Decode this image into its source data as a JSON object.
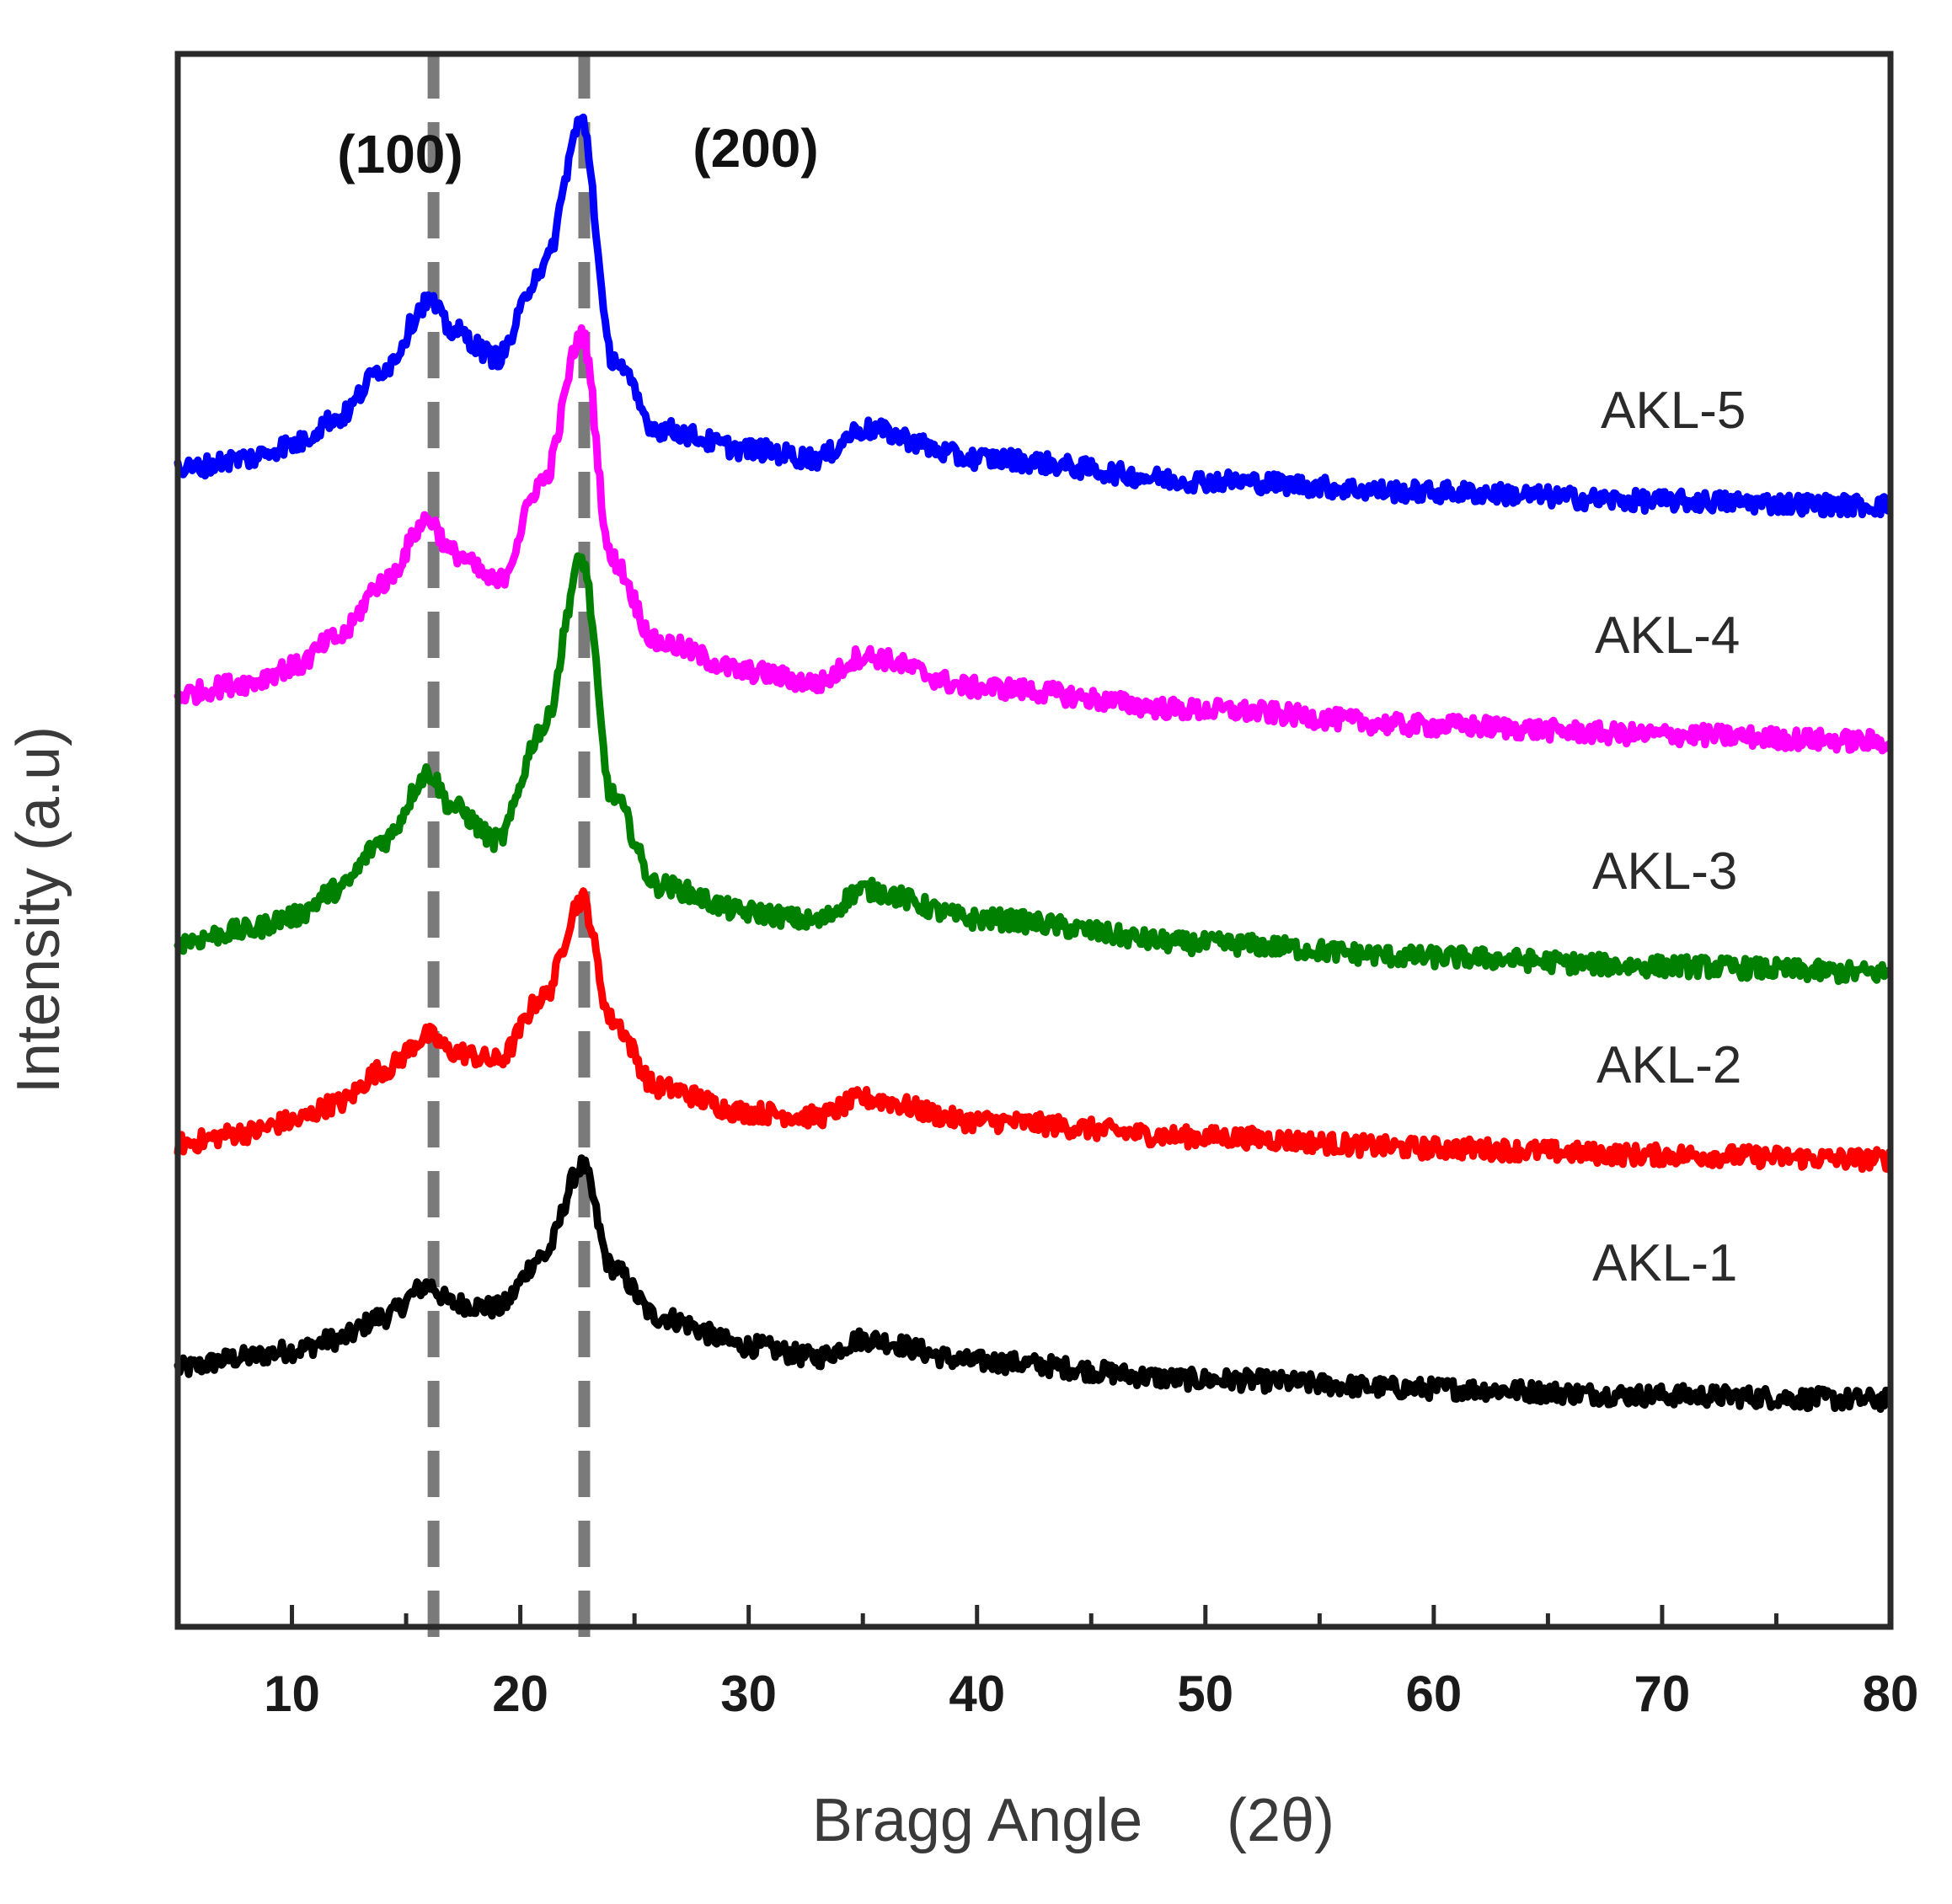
{
  "chart_data": {
    "type": "line",
    "title": "",
    "xlabel": "Bragg Angle",
    "xlabel_unit": "(2θ)",
    "ylabel": "Intensity (a.u)",
    "xlim": [
      5,
      80
    ],
    "ylim": [
      0,
      70
    ],
    "xticks": [
      10,
      20,
      30,
      40,
      50,
      60,
      70,
      80
    ],
    "xtick_labels": [
      "10",
      "20",
      "30",
      "40",
      "50",
      "60",
      "70",
      "80"
    ],
    "grid": false,
    "legend": "inline-right",
    "reference_lines": [
      {
        "x": 16.2,
        "label": "(100)"
      },
      {
        "x": 22.8,
        "label": "(200)"
      }
    ],
    "series": [
      {
        "name": "AKL-1",
        "color": "#000000",
        "x": [
          5,
          8,
          10,
          12,
          14,
          16,
          17,
          19,
          21,
          22.7,
          24,
          26,
          30,
          33,
          35,
          40,
          50,
          60,
          70,
          80
        ],
        "y": [
          11.5,
          12,
          12.3,
          12.8,
          13.8,
          15.2,
          14.4,
          14.2,
          16.5,
          20.5,
          16,
          13.8,
          12.5,
          12,
          12.8,
          11.8,
          11,
          10.6,
          10.3,
          10.1
        ]
      },
      {
        "name": "AKL-2",
        "color": "#ff0000",
        "x": [
          5,
          8,
          10,
          12,
          14,
          16,
          17,
          19,
          21,
          22.7,
          24,
          26,
          30,
          33,
          35,
          40,
          50,
          60,
          70,
          80
        ],
        "y": [
          21.5,
          22,
          22.5,
          23.3,
          24.8,
          26.3,
          25.6,
          25.2,
          28,
          32.4,
          27,
          24,
          22.9,
          22.7,
          23.5,
          22.5,
          21.8,
          21.3,
          21.0,
          20.8
        ]
      },
      {
        "name": "AKL-3",
        "color": "#008000",
        "x": [
          5,
          8,
          10,
          12,
          14,
          16,
          17,
          19,
          21,
          22.7,
          24,
          26,
          30,
          33,
          35,
          40,
          50,
          60,
          70,
          80
        ],
        "y": [
          30.5,
          31,
          31.6,
          32.8,
          35,
          38,
          36.5,
          35,
          40,
          47.5,
          37,
          33,
          31.8,
          31.4,
          32.8,
          31.5,
          30.4,
          29.8,
          29.4,
          29.1
        ]
      },
      {
        "name": "AKL-4",
        "color": "#ff00ff",
        "x": [
          5,
          8,
          10,
          12,
          14,
          16,
          17,
          19,
          21,
          22.7,
          24,
          26,
          30,
          33,
          35,
          40,
          50,
          60,
          70,
          80
        ],
        "y": [
          41.5,
          42,
          42.7,
          44,
          46.5,
          49.3,
          47.8,
          46.5,
          51,
          57.5,
          47.5,
          43.8,
          42.5,
          42,
          43.2,
          41.8,
          40.8,
          40.1,
          39.7,
          39.4
        ]
      },
      {
        "name": "AKL-5",
        "color": "#0000ff",
        "x": [
          5,
          8,
          10,
          12,
          14,
          16,
          17,
          19,
          21,
          22.7,
          24,
          26,
          30,
          33,
          35,
          40,
          50,
          60,
          70,
          80
        ],
        "y": [
          51.5,
          52,
          52.6,
          53.8,
          56,
          59,
          57.7,
          56.5,
          60.5,
          67,
          56.5,
          53.3,
          52.4,
          52,
          53.3,
          52,
          51,
          50.5,
          50.1,
          49.9
        ]
      }
    ]
  }
}
